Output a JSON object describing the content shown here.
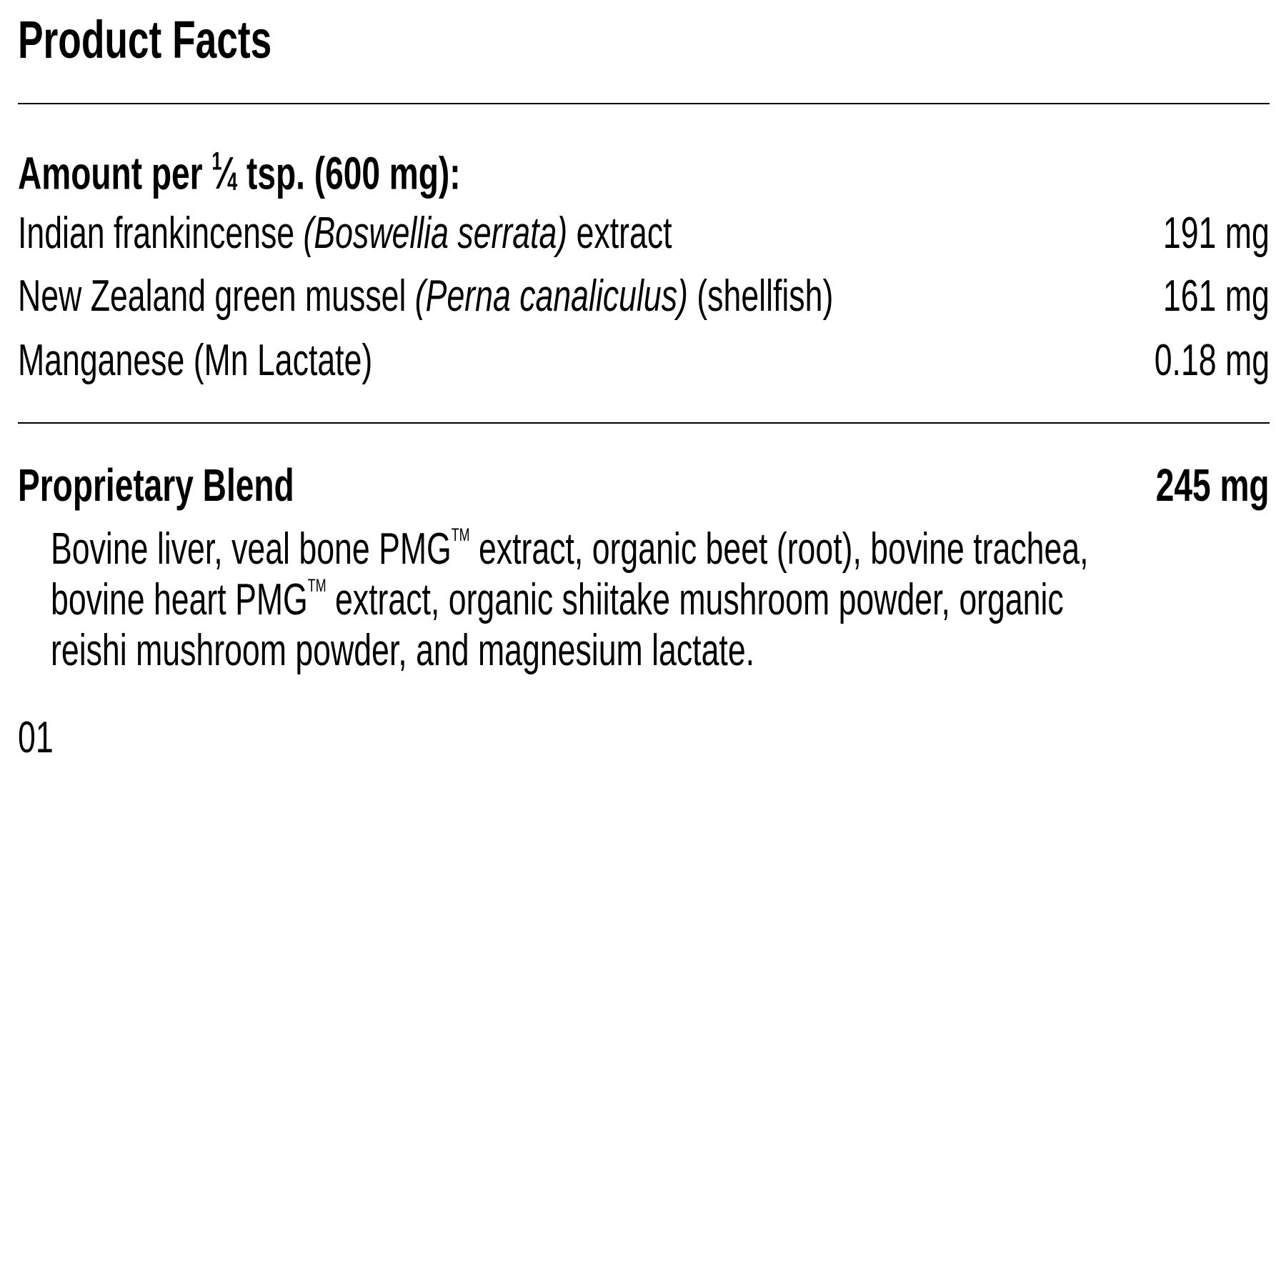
{
  "title": "Product Facts",
  "serving": {
    "prefix": "Amount per ",
    "fraction_num": "1",
    "fraction_slash": "⁄",
    "fraction_den": "4",
    "suffix": " tsp. (600 mg):"
  },
  "ingredients": [
    {
      "name": "Indian frankincense ",
      "latin": "(Boswellia serrata)",
      "after": " extract",
      "amount": "191 mg"
    },
    {
      "name": "New Zealand green mussel ",
      "latin": "(Perna canaliculus)",
      "after": " (shellfish)",
      "amount": "161 mg"
    },
    {
      "name": "Manganese (Mn Lactate)",
      "latin": "",
      "after": "",
      "amount": "0.18 mg"
    }
  ],
  "blend": {
    "label": "Proprietary Blend",
    "amount": "245 mg",
    "line1a": "Bovine liver, veal bone PMG",
    "tm": "TM",
    "line1b": " extract, organic beet (root), bovine trachea,",
    "line2a": "bovine heart PMG",
    "line2b": " extract, organic shiitake mushroom powder, organic",
    "line3": "reishi mushroom powder, and magnesium lactate."
  },
  "code": "01"
}
